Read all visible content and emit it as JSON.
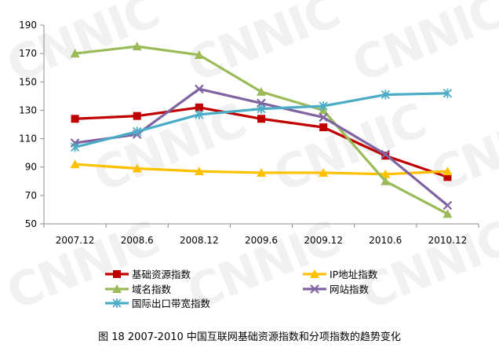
{
  "watermark": "CNNIC",
  "caption": "图  18 2007-2010 中国互联网基础资源指数和分项指数的趋势变化",
  "chart_data": {
    "type": "line",
    "categories": [
      "2007.12",
      "2008.6",
      "2008.12",
      "2009.6",
      "2009.12",
      "2010.6",
      "2010.12"
    ],
    "ylim": [
      50,
      190
    ],
    "yticks": [
      50,
      70,
      90,
      110,
      130,
      150,
      170,
      190
    ],
    "grid": false,
    "legend_position": "bottom",
    "series": [
      {
        "name": "基础资源指数",
        "color": "#c00000",
        "marker": "square",
        "values": [
          124,
          126,
          132,
          124,
          118,
          98,
          83
        ]
      },
      {
        "name": "IP地址指数",
        "color": "#ffc000",
        "marker": "triangle",
        "values": [
          92,
          89,
          87,
          86,
          86,
          85,
          87
        ]
      },
      {
        "name": "域名指数",
        "color": "#9bbb59",
        "marker": "triangle",
        "values": [
          170,
          175,
          169,
          143,
          130,
          80,
          57
        ]
      },
      {
        "name": "网站指数",
        "color": "#8064a2",
        "marker": "x",
        "values": [
          107,
          113,
          145,
          135,
          125,
          99,
          63
        ]
      },
      {
        "name": "国际出口带宽指数",
        "color": "#4bacc6",
        "marker": "star",
        "values": [
          104,
          115,
          127,
          131,
          133,
          141,
          142
        ]
      }
    ]
  }
}
